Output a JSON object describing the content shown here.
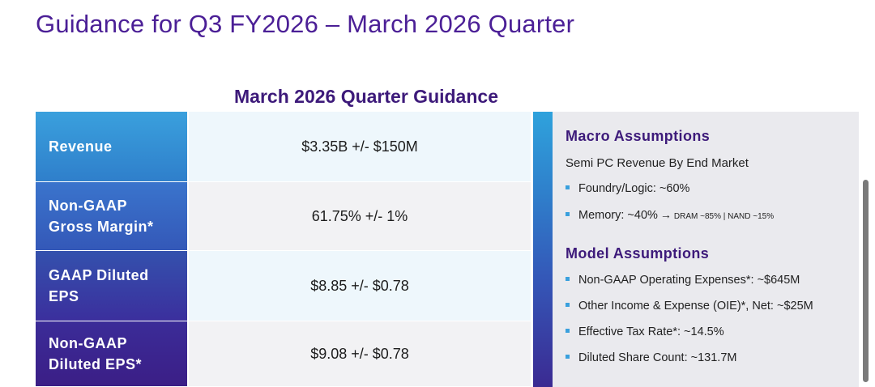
{
  "slide": {
    "title": "Guidance for Q3 FY2026 – March 2026 Quarter",
    "section_heading": "March 2026 Quarter Guidance"
  },
  "guidance": [
    {
      "label": "Revenue",
      "value": "$3.35B +/- $150M"
    },
    {
      "label": "Non-GAAP\nGross Margin*",
      "value": "61.75% +/- 1%"
    },
    {
      "label": "GAAP Diluted\nEPS",
      "value": "$8.85 +/- $0.78"
    },
    {
      "label": "Non-GAAP\nDiluted EPS*",
      "value": "$9.08 +/- $0.78"
    }
  ],
  "macro": {
    "heading": "Macro Assumptions",
    "subheading": "Semi PC Revenue By End Market",
    "foundry": "Foundry/Logic: ~60%",
    "memory_main": "Memory: ~40%",
    "memory_arrow": "→",
    "memory_detail": "DRAM ~85% | NAND ~15%"
  },
  "model": {
    "heading": "Model Assumptions",
    "items": [
      "Non-GAAP Operating Expenses*: ~$645M",
      "Other Income & Expense (OIE)*, Net: ~$25M",
      "Effective Tax Rate*: ~14.5%",
      "Diluted Share Count: ~131.7M"
    ]
  },
  "colors": {
    "title": "#4b1f96",
    "heading": "#3d1a7a",
    "accent": "#3aa0dd"
  }
}
